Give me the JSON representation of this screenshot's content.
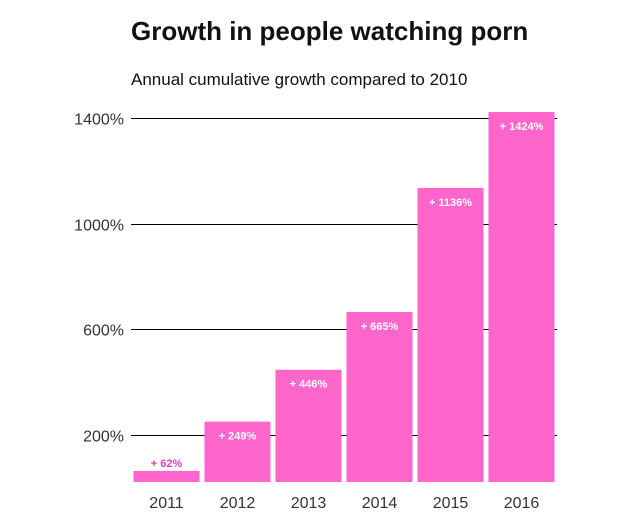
{
  "title": "Growth in people watching porn",
  "subtitle": "Annual cumulative growth compared to 2010",
  "colors": {
    "bar": "#ff66cc",
    "label_inside": "#ffffff",
    "label_outside": "#e03cb8",
    "grid": "#000000",
    "text": "#333333"
  },
  "chart_data": {
    "type": "bar",
    "title": "Growth in people watching porn",
    "subtitle": "Annual cumulative growth compared to 2010",
    "categories": [
      "2011",
      "2012",
      "2013",
      "2014",
      "2015",
      "2016"
    ],
    "values": [
      62,
      249,
      446,
      665,
      1136,
      1424
    ],
    "data_labels": [
      "+ 62%",
      "+ 249%",
      "+ 446%",
      "+ 665%",
      "+ 1136%",
      "+ 1424%"
    ],
    "y_ticks": [
      200,
      600,
      1000,
      1400
    ],
    "y_tick_labels": [
      "200%",
      "600%",
      "1000%",
      "1400%"
    ],
    "ylim": [
      20,
      1400
    ],
    "grid": true,
    "legend": "none"
  }
}
